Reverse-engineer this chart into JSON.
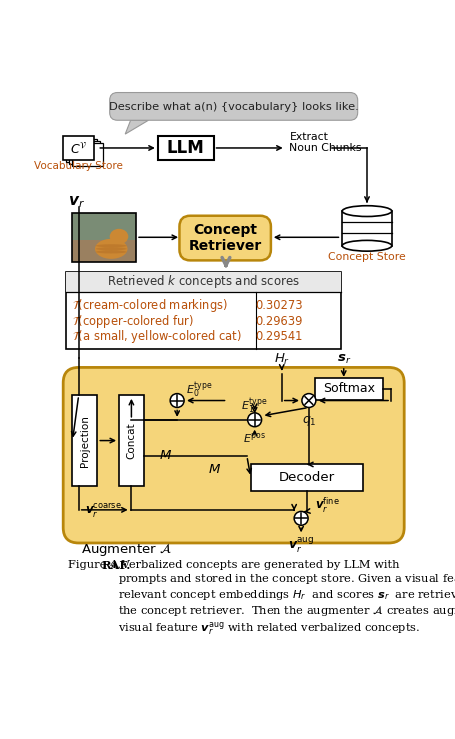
{
  "figsize": [
    4.56,
    7.39
  ],
  "dpi": 100,
  "bg_color": "#ffffff",
  "yellow_bg": "#f5d57a",
  "gray_bubble_bg": "#c8c8c8",
  "orange_text": "#b8500a",
  "speech_text": "Describe what a(n) {vocabulary} looks like.",
  "vocab_label": "Vocabulary Store",
  "llm_label": "LLM",
  "extract_label": "Extract\nNoun Chunks",
  "concept_retriever_label": "Concept\nRetriever",
  "concept_store_label": "Concept Store",
  "retrieved_header": "Retrieved $k$ concepts and scores",
  "row1_text": "$\\mathcal{T}$(cream-colored markings)",
  "row1_score": "0.30273",
  "row2_text": "$\\mathcal{T}$(copper-colored fur)",
  "row2_score": "0.29639",
  "row3_text": "$\\mathcal{T}$(a small, yellow-colored cat)",
  "row3_score": "0.29541",
  "softmax_label": "Softmax",
  "decoder_label": "Decoder",
  "projection_label": "Projection",
  "concat_label": "Concat",
  "augmenter_label": "Augmenter $\\mathcal{A}$",
  "dark_yellow": "#b8860b"
}
